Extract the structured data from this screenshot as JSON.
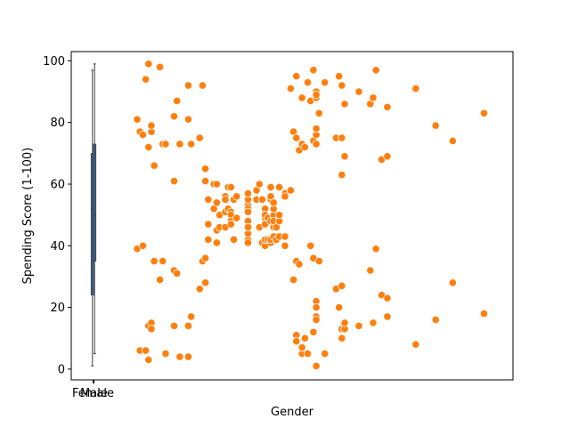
{
  "chart_data": {
    "type": "scatter",
    "title": "",
    "xlabel": "Gender",
    "ylabel": "Spending Score (1-100)",
    "x_categories": [
      "Female",
      "Male"
    ],
    "ylim": [
      -3.5,
      103
    ],
    "yticks": [
      0,
      20,
      40,
      60,
      80,
      100
    ],
    "grid": false,
    "legend": "none",
    "colors": {
      "scatter": "#ff7f0e",
      "box": "#3d5a80",
      "axis": "#000000"
    },
    "box_series": [
      {
        "name": "Female",
        "whisker_low": 1,
        "q1": 24,
        "median": 52,
        "q3": 70,
        "whisker_high": 97
      },
      {
        "name": "Male",
        "whisker_low": 5,
        "q1": 35,
        "median": 50,
        "q3": 73,
        "whisker_high": 99
      }
    ],
    "scatter_x_domain": [
      15,
      140
    ],
    "points": [
      [
        15,
        39
      ],
      [
        15,
        81
      ],
      [
        16,
        6
      ],
      [
        16,
        77
      ],
      [
        17,
        40
      ],
      [
        17,
        76
      ],
      [
        18,
        6
      ],
      [
        18,
        94
      ],
      [
        19,
        3
      ],
      [
        19,
        72
      ],
      [
        19,
        14
      ],
      [
        19,
        99
      ],
      [
        20,
        15
      ],
      [
        20,
        77
      ],
      [
        20,
        13
      ],
      [
        20,
        79
      ],
      [
        21,
        35
      ],
      [
        21,
        66
      ],
      [
        23,
        29
      ],
      [
        23,
        98
      ],
      [
        24,
        35
      ],
      [
        24,
        73
      ],
      [
        25,
        5
      ],
      [
        25,
        73
      ],
      [
        28,
        14
      ],
      [
        28,
        82
      ],
      [
        28,
        32
      ],
      [
        28,
        61
      ],
      [
        29,
        31
      ],
      [
        29,
        87
      ],
      [
        30,
        4
      ],
      [
        30,
        73
      ],
      [
        33,
        4
      ],
      [
        33,
        92
      ],
      [
        33,
        14
      ],
      [
        33,
        81
      ],
      [
        34,
        17
      ],
      [
        34,
        73
      ],
      [
        37,
        26
      ],
      [
        37,
        75
      ],
      [
        38,
        35
      ],
      [
        38,
        92
      ],
      [
        39,
        36
      ],
      [
        39,
        61
      ],
      [
        39,
        28
      ],
      [
        39,
        65
      ],
      [
        40,
        55
      ],
      [
        40,
        47
      ],
      [
        40,
        42
      ],
      [
        40,
        42
      ],
      [
        42,
        52
      ],
      [
        42,
        60
      ],
      [
        43,
        54
      ],
      [
        43,
        60
      ],
      [
        43,
        45
      ],
      [
        43,
        41
      ],
      [
        44,
        50
      ],
      [
        44,
        46
      ],
      [
        46,
        51
      ],
      [
        46,
        46
      ],
      [
        46,
        56
      ],
      [
        46,
        55
      ],
      [
        47,
        52
      ],
      [
        47,
        59
      ],
      [
        48,
        51
      ],
      [
        48,
        59
      ],
      [
        48,
        50
      ],
      [
        48,
        48
      ],
      [
        48,
        59
      ],
      [
        48,
        47
      ],
      [
        49,
        55
      ],
      [
        49,
        42
      ],
      [
        50,
        49
      ],
      [
        50,
        56
      ],
      [
        54,
        47
      ],
      [
        54,
        54
      ],
      [
        54,
        53
      ],
      [
        54,
        48
      ],
      [
        54,
        52
      ],
      [
        54,
        42
      ],
      [
        54,
        51
      ],
      [
        54,
        55
      ],
      [
        54,
        41
      ],
      [
        54,
        44
      ],
      [
        54,
        57
      ],
      [
        54,
        46
      ],
      [
        57,
        58
      ],
      [
        57,
        55
      ],
      [
        58,
        60
      ],
      [
        58,
        46
      ],
      [
        59,
        55
      ],
      [
        59,
        41
      ],
      [
        60,
        49
      ],
      [
        60,
        40
      ],
      [
        60,
        42
      ],
      [
        60,
        52
      ],
      [
        60,
        47
      ],
      [
        60,
        50
      ],
      [
        61,
        42
      ],
      [
        61,
        49
      ],
      [
        62,
        41
      ],
      [
        62,
        48
      ],
      [
        62,
        59
      ],
      [
        62,
        55
      ],
      [
        62,
        56
      ],
      [
        62,
        42
      ],
      [
        63,
        50
      ],
      [
        63,
        46
      ],
      [
        63,
        43
      ],
      [
        63,
        48
      ],
      [
        63,
        52
      ],
      [
        63,
        54
      ],
      [
        64,
        42
      ],
      [
        64,
        46
      ],
      [
        65,
        48
      ],
      [
        65,
        50
      ],
      [
        65,
        43
      ],
      [
        65,
        59
      ],
      [
        67,
        43
      ],
      [
        67,
        57
      ],
      [
        67,
        56
      ],
      [
        67,
        40
      ],
      [
        69,
        58
      ],
      [
        69,
        91
      ],
      [
        70,
        29
      ],
      [
        70,
        77
      ],
      [
        71,
        35
      ],
      [
        71,
        95
      ],
      [
        71,
        11
      ],
      [
        71,
        75
      ],
      [
        71,
        9
      ],
      [
        71,
        75
      ],
      [
        72,
        34
      ],
      [
        72,
        71
      ],
      [
        73,
        5
      ],
      [
        73,
        88
      ],
      [
        73,
        7
      ],
      [
        73,
        73
      ],
      [
        74,
        10
      ],
      [
        74,
        72
      ],
      [
        75,
        5
      ],
      [
        75,
        93
      ],
      [
        76,
        40
      ],
      [
        76,
        87
      ],
      [
        77,
        12
      ],
      [
        77,
        97
      ],
      [
        77,
        36
      ],
      [
        77,
        74
      ],
      [
        78,
        22
      ],
      [
        78,
        90
      ],
      [
        78,
        17
      ],
      [
        78,
        88
      ],
      [
        78,
        20
      ],
      [
        78,
        76
      ],
      [
        78,
        16
      ],
      [
        78,
        89
      ],
      [
        78,
        1
      ],
      [
        78,
        78
      ],
      [
        78,
        1
      ],
      [
        78,
        73
      ],
      [
        79,
        35
      ],
      [
        79,
        83
      ],
      [
        81,
        5
      ],
      [
        81,
        93
      ],
      [
        85,
        26
      ],
      [
        85,
        75
      ],
      [
        86,
        20
      ],
      [
        86,
        95
      ],
      [
        87,
        27
      ],
      [
        87,
        63
      ],
      [
        87,
        13
      ],
      [
        87,
        75
      ],
      [
        87,
        10
      ],
      [
        87,
        92
      ],
      [
        88,
        13
      ],
      [
        88,
        86
      ],
      [
        88,
        15
      ],
      [
        88,
        69
      ],
      [
        93,
        14
      ],
      [
        93,
        90
      ],
      [
        97,
        32
      ],
      [
        97,
        86
      ],
      [
        98,
        15
      ],
      [
        98,
        88
      ],
      [
        99,
        39
      ],
      [
        99,
        97
      ],
      [
        101,
        24
      ],
      [
        101,
        68
      ],
      [
        103,
        17
      ],
      [
        103,
        85
      ],
      [
        103,
        23
      ],
      [
        103,
        69
      ],
      [
        113,
        8
      ],
      [
        113,
        91
      ],
      [
        120,
        16
      ],
      [
        120,
        79
      ],
      [
        126,
        28
      ],
      [
        126,
        74
      ],
      [
        137,
        18
      ],
      [
        137,
        83
      ]
    ]
  }
}
